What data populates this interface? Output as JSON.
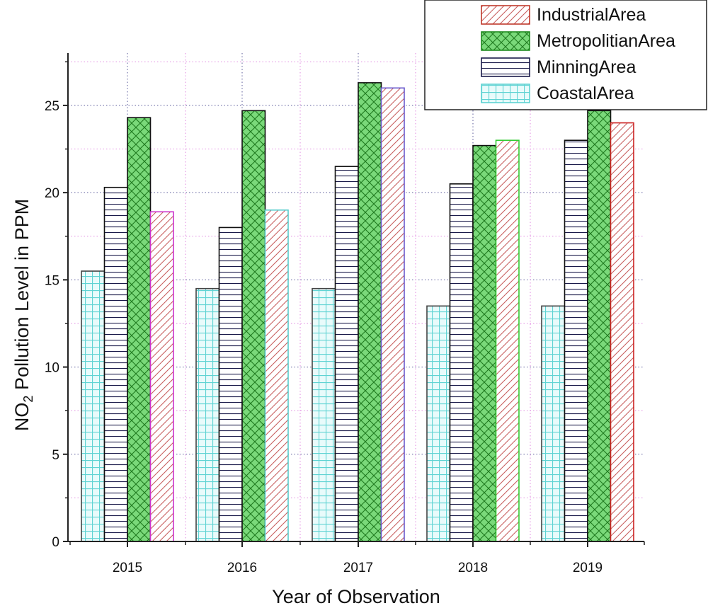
{
  "chart_data": {
    "type": "bar",
    "title": "",
    "xlabel": "Year of Observation",
    "ylabel_main": "NO",
    "ylabel_sub": "2",
    "ylabel_rest": " Pollution Level in PPM",
    "categories": [
      "2015",
      "2016",
      "2017",
      "2018",
      "2019"
    ],
    "ylim": [
      0,
      28
    ],
    "yticks": [
      0,
      5,
      10,
      15,
      20,
      25
    ],
    "ytick_labels": [
      "0",
      "5",
      "10",
      "15",
      "20",
      "25"
    ],
    "grid": true,
    "legend_position": "top-right",
    "series": [
      {
        "name": "CoastalArea",
        "values": [
          15.5,
          14.5,
          14.5,
          13.5,
          13.5
        ]
      },
      {
        "name": "MinningArea",
        "values": [
          20.3,
          18.0,
          21.5,
          20.5,
          23.0
        ]
      },
      {
        "name": "MetropolitianArea",
        "values": [
          24.3,
          24.7,
          26.3,
          22.7,
          24.7
        ]
      },
      {
        "name": "IndustrialArea",
        "values": [
          18.9,
          19.0,
          26.0,
          23.0,
          24.0
        ]
      }
    ],
    "legend_order": [
      "IndustrialArea",
      "MetropolitianArea",
      "MinningArea",
      "CoastalArea"
    ],
    "colors": {
      "CoastalArea": {
        "line": "#5fd3d3",
        "fill": "#e9fbfb",
        "hatch": "grid"
      },
      "MinningArea": {
        "line": "#1a1a4a",
        "fill": "#ffffff",
        "hatch": "horizontal"
      },
      "MetropolitianArea": {
        "line": "#1f8a1f",
        "fill": "#6fd66f",
        "hatch": "cross"
      },
      "IndustrialArea": {
        "line": "#c0392b",
        "fill": "#ffffff",
        "hatch": "diagonal"
      }
    },
    "bar_outline_overrides": {
      "IndustrialArea": [
        "#cc33cc",
        "#55cccc",
        "#6a5acd",
        "#33cc33",
        "#cc2222"
      ]
    }
  }
}
